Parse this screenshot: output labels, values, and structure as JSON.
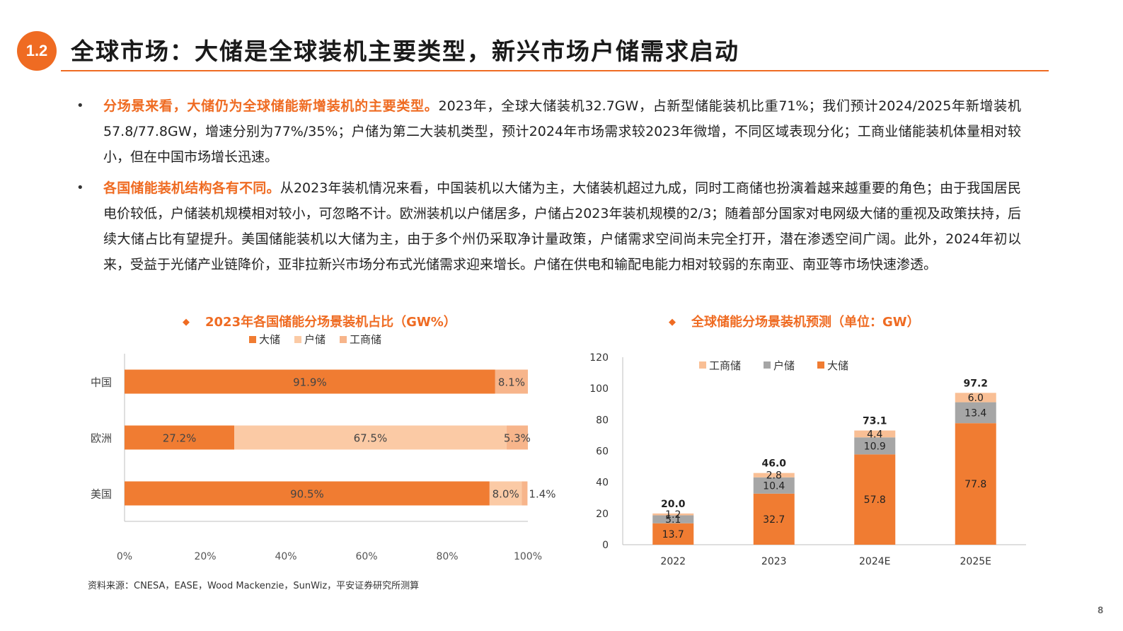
{
  "header": {
    "section_number": "1.2",
    "title": "全球市场：大储是全球装机主要类型，新兴市场户储需求启动"
  },
  "bullets": [
    {
      "highlight": "分场景来看，大储仍为全球储能新增装机的主要类型。",
      "text": "2023年，全球大储装机32.7GW，占新型储能装机比重71%；我们预计2024/2025年新增装机57.8/77.8GW，增速分别为77%/35%；户储为第二大装机类型，预计2024年市场需求较2023年微增，不同区域表现分化；工商业储能装机体量相对较小，但在中国市场增长迅速。"
    },
    {
      "highlight": "各国储能装机结构各有不同。",
      "text": "从2023年装机情况来看，中国装机以大储为主，大储装机超过九成，同时工商储也扮演着越来越重要的角色；由于我国居民电价较低，户储装机规模相对较小，可忽略不计。欧洲装机以户储居多，户储占2023年装机规模的2/3；随着部分国家对电网级大储的重视及政策扶持，后续大储占比有望提升。美国储能装机以大储为主，由于多个州仍采取净计量政策，户储需求空间尚未完全打开，潜在渗透空间广阔。此外，2024年初以来，受益于光储产业链降价，亚非拉新兴市场分布式光储需求迎来增长。户储在供电和输配电能力相对较弱的东南亚、南亚等市场快速渗透。"
    }
  ],
  "chart_data": [
    {
      "type": "bar",
      "orientation": "horizontal",
      "stacked": true,
      "title": "2023年各国储能分场景装机占比（GW%）",
      "bullet_symbol": "◆",
      "legend_position": "top",
      "categories": [
        "中国",
        "欧洲",
        "美国"
      ],
      "series": [
        {
          "name": "大储",
          "color": "#f07c32",
          "values": [
            91.9,
            27.2,
            90.5
          ],
          "labels": [
            "91.9%",
            "27.2%",
            "90.5%"
          ]
        },
        {
          "name": "户储",
          "color": "#fbcaa5",
          "values": [
            0,
            67.5,
            8.0
          ],
          "labels": [
            "",
            "67.5%",
            "8.0%"
          ]
        },
        {
          "name": "工商储",
          "color": "#f7b58b",
          "values": [
            8.1,
            5.3,
            1.4
          ],
          "labels": [
            "8.1%",
            "5.3%",
            "1.4%"
          ]
        }
      ],
      "xlim": [
        0,
        100
      ],
      "x_ticks": [
        "0%",
        "20%",
        "40%",
        "60%",
        "80%",
        "100%"
      ]
    },
    {
      "type": "bar",
      "stacked": true,
      "title": "全球储能分场景装机预测（单位：GW）",
      "bullet_symbol": "◆",
      "legend_position": "top",
      "categories": [
        "2022",
        "2023",
        "2024E",
        "2025E"
      ],
      "series": [
        {
          "name": "大储",
          "color": "#f07c32",
          "values": [
            13.7,
            32.7,
            57.8,
            77.8
          ]
        },
        {
          "name": "户储",
          "color": "#a6a6a6",
          "values": [
            5.1,
            10.4,
            10.9,
            13.4
          ]
        },
        {
          "name": "工商储",
          "color": "#f9bf95",
          "values": [
            1.2,
            2.8,
            4.4,
            6.0
          ]
        }
      ],
      "totals": [
        "20.0",
        "46.0",
        "73.1",
        "97.2"
      ],
      "legend_order": [
        "工商储",
        "户储",
        "大储"
      ],
      "ylim": [
        0,
        120
      ],
      "y_ticks": [
        "0",
        "20",
        "40",
        "60",
        "80",
        "100",
        "120"
      ]
    }
  ],
  "footer": {
    "source": "资料来源：CNESA，EASE，Wood Mackenzie，SunWiz，平安证券研究所测算",
    "page_number": "8"
  }
}
